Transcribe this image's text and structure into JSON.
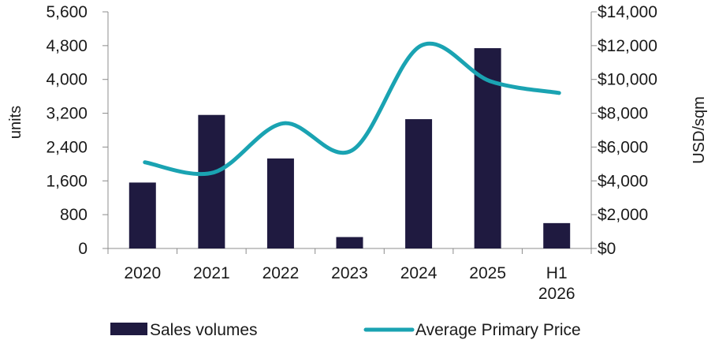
{
  "chart_data": {
    "type": "bar+line",
    "categories": [
      "2020",
      "2021",
      "2022",
      "2023",
      "2024",
      "2025",
      "H1\n2026"
    ],
    "series": [
      {
        "name": "Sales volumes",
        "type": "bar",
        "axis": "left",
        "color": "#1f1a40",
        "values": [
          1560,
          3160,
          2130,
          270,
          3060,
          4740,
          600
        ]
      },
      {
        "name": "Average Primary Price",
        "type": "line",
        "axis": "right",
        "color": "#1aa3b2",
        "values": [
          5100,
          4500,
          7400,
          5800,
          12000,
          9900,
          9200
        ]
      }
    ],
    "yleft": {
      "label": "units",
      "lim": [
        0,
        5600
      ],
      "ticks": [
        "0",
        "800",
        "1,600",
        "2,400",
        "3,200",
        "4,000",
        "4,800",
        "5,600"
      ]
    },
    "yright": {
      "label": "USD/sqm",
      "lim": [
        0,
        14000
      ],
      "ticks": [
        "$0",
        "$2,000",
        "$4,000",
        "$6,000",
        "$8,000",
        "$10,000",
        "$12,000",
        "$14,000"
      ]
    },
    "grid": false,
    "legend_position": "bottom"
  }
}
